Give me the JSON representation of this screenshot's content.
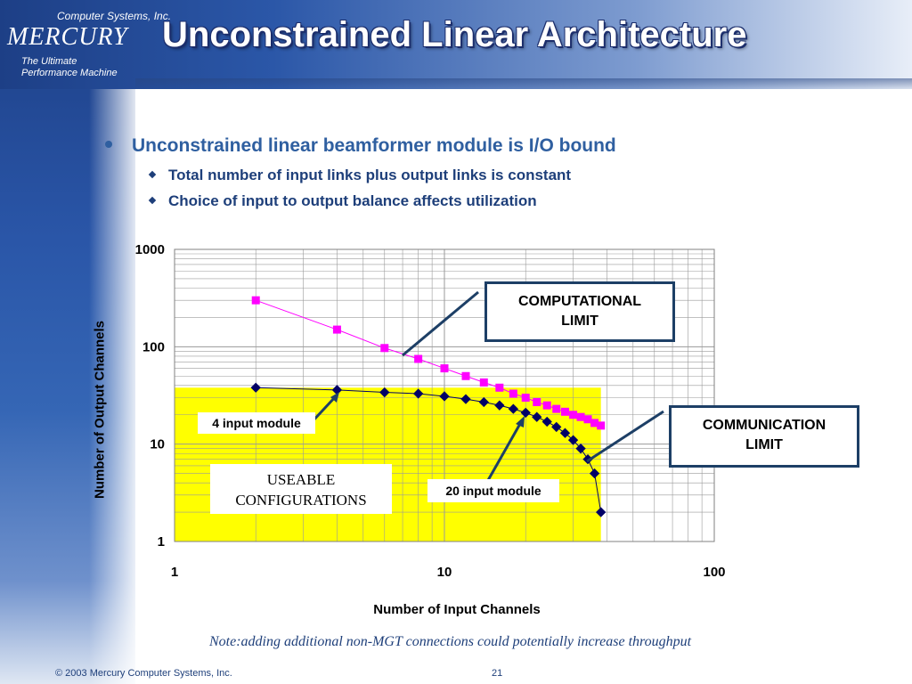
{
  "header": {
    "logo_top": "Computer Systems, Inc.",
    "logo_main": "MERCURY",
    "logo_sub1": "The Ultimate",
    "logo_sub2": "Performance Machine",
    "title": "Unconstrained Linear Architecture"
  },
  "bullets": {
    "main": "Unconstrained linear beamformer module is I/O bound",
    "sub1": "Total number of input links plus output links is constant",
    "sub2": "Choice of input to output balance affects utilization"
  },
  "annotations": {
    "computational_line1": "COMPUTATIONAL",
    "computational_line2": "LIMIT",
    "communication_line1": "COMMUNICATION",
    "communication_line2": "LIMIT",
    "four_input": "4 input module",
    "twenty_input": "20 input module",
    "useable_line1": "USEABLE",
    "useable_line2": "CONFIGURATIONS"
  },
  "note": "Note:adding additional non-MGT connections could potentially increase throughput",
  "footer": {
    "copyright": "© 2003 Mercury Computer Systems, Inc.",
    "page": "21"
  },
  "colors": {
    "computational_series": "#ff00ff",
    "communication_series": "#000066",
    "useable_region": "#ffff00",
    "accent": "#1d3f66"
  },
  "chart_data": {
    "type": "scatter",
    "xscale": "log",
    "yscale": "log",
    "xlim": [
      1,
      100
    ],
    "ylim": [
      1,
      1000
    ],
    "xlabel": "Number of Input Channels",
    "ylabel": "Number of Output Channels",
    "xticks": [
      "1",
      "10",
      "100"
    ],
    "yticks": [
      "1",
      "10",
      "100",
      "1000"
    ],
    "grid": true,
    "series": [
      {
        "color": "#ff00ff",
        "marker": "square",
        "points": [
          [
            2,
            300
          ],
          [
            4,
            150
          ],
          [
            6,
            97
          ],
          [
            8,
            75
          ],
          [
            10,
            60
          ],
          [
            12,
            50
          ],
          [
            14,
            43
          ],
          [
            16,
            38
          ],
          [
            18,
            33
          ],
          [
            20,
            30
          ],
          [
            22,
            27
          ],
          [
            24,
            25
          ],
          [
            26,
            23
          ],
          [
            28,
            21.5
          ],
          [
            30,
            20
          ],
          [
            32,
            19
          ],
          [
            34,
            18
          ],
          [
            36,
            16.5
          ],
          [
            38,
            15.5
          ]
        ]
      },
      {
        "color": "#000066",
        "marker": "diamond",
        "points": [
          [
            2,
            38
          ],
          [
            4,
            36
          ],
          [
            6,
            34
          ],
          [
            8,
            33
          ],
          [
            10,
            31
          ],
          [
            12,
            29
          ],
          [
            14,
            27
          ],
          [
            16,
            25
          ],
          [
            18,
            23
          ],
          [
            20,
            21
          ],
          [
            22,
            19
          ],
          [
            24,
            17
          ],
          [
            26,
            15
          ],
          [
            28,
            13
          ],
          [
            30,
            11
          ],
          [
            32,
            9
          ],
          [
            34,
            7
          ],
          [
            36,
            5
          ],
          [
            38,
            2
          ]
        ]
      }
    ],
    "region": {
      "label": "USEABLE CONFIGURATIONS",
      "x_max": 38,
      "y_max": 38
    }
  }
}
